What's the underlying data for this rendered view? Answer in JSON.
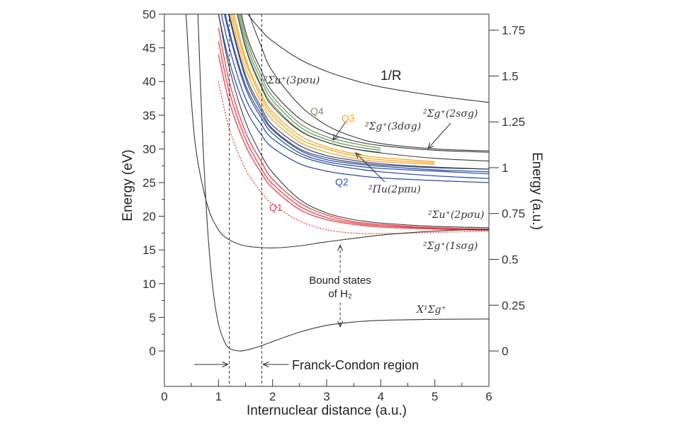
{
  "chart_data": {
    "type": "line",
    "xlabel": "Internuclear distance (a.u.)",
    "ylabel_left": "Energy (eV)",
    "ylabel_right": "Energy (a.u.)",
    "xlim": [
      0,
      6
    ],
    "ylim_ev": [
      -5.25,
      50
    ],
    "x_ticks": [
      "0",
      "1",
      "2",
      "3",
      "4",
      "5",
      "6"
    ],
    "y_ticks_left": [
      "0",
      "5",
      "10",
      "15",
      "20",
      "25",
      "30",
      "35",
      "40",
      "45",
      "50"
    ],
    "y_ticks_right": [
      "0",
      "0.25",
      "0.5",
      "0.75",
      "1",
      "1.25",
      "1.5",
      "1.75"
    ],
    "grid": false,
    "colors": {
      "black": "#3a3a3a",
      "Q1": "#e8414b",
      "Q2": "#3050a8",
      "Q3": "#f5a623",
      "Q4": "#6f9462"
    },
    "R_grid": [
      1.0,
      1.2,
      1.5,
      1.8,
      2.0,
      2.5,
      3.0,
      3.5,
      4.0,
      5.0,
      6.0
    ],
    "series": [
      {
        "name": "X¹Σg⁺",
        "group": "black",
        "x": [
          0.62,
          0.7,
          0.8,
          0.9,
          1.0,
          1.1,
          1.2,
          1.4,
          1.6,
          1.8,
          2.0,
          2.5,
          3.0,
          3.5,
          4.0,
          5.0,
          6.0
        ],
        "y": [
          50,
          33,
          18,
          9,
          4,
          1.6,
          0.4,
          0,
          0.3,
          0.8,
          1.4,
          2.8,
          3.8,
          4.3,
          4.55,
          4.7,
          4.75
        ]
      },
      {
        "name": "²Σg⁺(1sσg)",
        "group": "black",
        "x": [
          0.4,
          0.5,
          0.6,
          0.8,
          1.0,
          1.2,
          1.5,
          2.0,
          2.5,
          3.0,
          4.0,
          5.0,
          6.0
        ],
        "y": [
          50,
          37,
          29,
          21.5,
          18,
          16.5,
          15.6,
          15.3,
          15.6,
          16.2,
          17.2,
          17.8,
          18.1
        ]
      },
      {
        "name": "Q1",
        "group": "Q1",
        "y": [
          48,
          40,
          32.5,
          28,
          25.5,
          22,
          20.2,
          19.2,
          18.8,
          18.3,
          18.1
        ]
      },
      {
        "name": "Q1",
        "group": "Q1",
        "y": [
          46,
          38.5,
          31.5,
          27,
          24.8,
          21.5,
          19.8,
          19,
          18.6,
          18.2,
          18
        ]
      },
      {
        "name": "Q1",
        "group": "Q1",
        "y": [
          44,
          37,
          30.5,
          26.3,
          24.2,
          21,
          19.5,
          18.8,
          18.4,
          18.1,
          17.9
        ]
      },
      {
        "name": "Q1",
        "group": "Q1",
        "dashed": true,
        "y": [
          40,
          33,
          27,
          23.5,
          21.8,
          19.3,
          18,
          17.5,
          17.4,
          17.6,
          17.8
        ]
      },
      {
        "name": "²Σu⁺(2pσu)",
        "group": "black",
        "y": [
          50,
          42,
          34,
          29,
          26.5,
          22.5,
          20.5,
          19.5,
          19,
          18.5,
          18.3
        ]
      },
      {
        "name": "Q2",
        "group": "Q2",
        "y": [
          58,
          50,
          41,
          36,
          33.5,
          30.5,
          29,
          28.3,
          27.8,
          27.3,
          27
        ]
      },
      {
        "name": "Q2",
        "group": "Q2",
        "y": [
          55,
          47.5,
          39.5,
          35,
          32.8,
          29.8,
          28.4,
          27.8,
          27.4,
          26.9,
          26.6
        ]
      },
      {
        "name": "Q2",
        "group": "Q2",
        "y": [
          52,
          45,
          37.5,
          33.5,
          31.5,
          29,
          27.8,
          27.1,
          26.6,
          26,
          25.6
        ]
      },
      {
        "name": "Q2",
        "group": "Q2",
        "y": [
          50,
          43,
          36,
          32,
          30.2,
          27.8,
          26.7,
          26.1,
          25.7,
          25.3,
          25
        ]
      },
      {
        "name": "Q2",
        "group": "Q2",
        "y": [
          54,
          47,
          39,
          34.5,
          32.3,
          29.4,
          28.1,
          27.5,
          27.1,
          26.7,
          26.3
        ]
      },
      {
        "name": "²Πu(2pπu)",
        "group": "black",
        "y": [
          57,
          49.5,
          40.5,
          35.5,
          33,
          30,
          28.7,
          28,
          27.6,
          27.2,
          27
        ]
      },
      {
        "name": "Q3",
        "group": "Q3",
        "y": [
          60,
          52,
          43,
          37.5,
          35,
          31.5,
          30,
          29,
          28.4,
          27.9,
          null
        ]
      },
      {
        "name": "Q3",
        "group": "Q3",
        "y": [
          59,
          51,
          42,
          36.8,
          34.3,
          31,
          29.5,
          28.6,
          28.1,
          27.7,
          null
        ]
      },
      {
        "name": "Q3",
        "group": "Q3",
        "y": [
          61,
          53,
          43.5,
          38,
          35.5,
          32,
          30.3,
          29.3,
          28.7,
          28.1,
          null
        ]
      },
      {
        "name": "Q4",
        "group": "Q4",
        "y": [
          66,
          57,
          46,
          40,
          37.2,
          33.3,
          31.4,
          30.4,
          29.8,
          null,
          null
        ]
      },
      {
        "name": "Q4",
        "group": "Q4",
        "y": [
          65,
          56,
          45.3,
          39.3,
          36.6,
          32.8,
          31,
          30,
          29.5,
          null,
          null
        ]
      },
      {
        "name": "Q4",
        "group": "Q4",
        "y": [
          67,
          58,
          46.8,
          40.7,
          37.8,
          33.8,
          31.8,
          30.8,
          30.1,
          null,
          null
        ]
      },
      {
        "name": "²Σu⁺(3pσu)",
        "group": "black",
        "y": [
          68,
          59,
          47.5,
          41.5,
          38.5,
          34.5,
          32.4,
          31.2,
          30.5,
          29.8,
          29.5
        ]
      },
      {
        "name": "²Σg⁺(3dσg)",
        "group": "black",
        "y": [
          64,
          55.5,
          45,
          39,
          36.3,
          32.7,
          31,
          30,
          29.4,
          28.6,
          28.2
        ]
      },
      {
        "name": "²Σg⁺(2sσg)",
        "group": "black",
        "y": [
          75,
          64,
          52,
          45,
          41.5,
          36.5,
          33.5,
          31.8,
          30.8,
          30,
          29.7
        ]
      },
      {
        "name": "1/R",
        "group": "black",
        "y": [
          59,
          55,
          50.5,
          47.5,
          46,
          43.3,
          41.5,
          40.2,
          39.2,
          37.9,
          36.9
        ]
      }
    ],
    "franck_condon_R": [
      1.2,
      1.8
    ],
    "annotations": {
      "one_over_r": "1/R",
      "s3p": "²Σu⁺(3pσu)",
      "s3d": "²Σg⁺(3dσg)",
      "s2s": "²Σg⁺(2sσg)",
      "p2p": "²Πu(2pπu)",
      "s2p": "²Σu⁺(2pσu)",
      "s1s": "²Σg⁺(1sσg)",
      "ground": "X¹Σg⁺",
      "q1": "Q1",
      "q2": "Q2",
      "q3": "Q3",
      "q4": "Q4",
      "bound1": "Bound states",
      "bound2": "of H₂",
      "franck_condon": "Franck-Condon region"
    }
  }
}
